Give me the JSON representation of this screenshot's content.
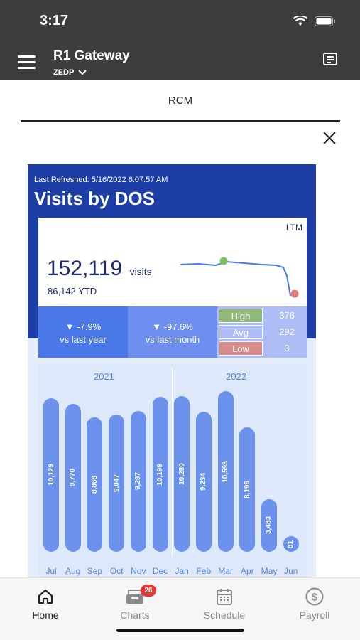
{
  "status": {
    "time": "3:17"
  },
  "app": {
    "title": "R1 Gateway",
    "org": "ZEDP"
  },
  "tabs": [
    {
      "label": "RCM"
    }
  ],
  "dashboard": {
    "refreshed": "Last Refreshed: 5/16/2022 6:07:57 AM",
    "title": "Visits by DOS",
    "period": "LTM",
    "visits": "152,119",
    "visits_unit": "visits",
    "ytd": "86,142 YTD",
    "vs_year_value": "▼ -7.9%",
    "vs_year_label": "vs last year",
    "vs_month_value": "▼ -97.6%",
    "vs_month_label": "vs last month",
    "high_label": "High",
    "high_value": "376",
    "high_color": "#8fba77",
    "avg_label": "Avg",
    "avg_value": "292",
    "avg_color": "#aebdf5",
    "low_label": "Low",
    "low_value": "3",
    "low_color": "#d88a8a"
  },
  "chart_data": {
    "type": "bar",
    "groups": [
      "2021",
      "2022"
    ],
    "categories": [
      "Jul",
      "Aug",
      "Sep",
      "Oct",
      "Nov",
      "Dec",
      "Jan",
      "Feb",
      "Mar",
      "Apr",
      "May",
      "Jun"
    ],
    "values": [
      10129,
      9770,
      8868,
      9047,
      9297,
      10199,
      10280,
      9234,
      10593,
      8196,
      3483,
      81
    ],
    "labels": [
      "10,129",
      "9,770",
      "8,868",
      "9,047",
      "9,297",
      "10,199",
      "10,280",
      "9,234",
      "10,593",
      "8,196",
      "3,483",
      "81"
    ],
    "bar_color": "#6a92ec"
  },
  "nav": [
    {
      "label": "Home",
      "icon": "home-icon",
      "active": true
    },
    {
      "label": "Charts",
      "icon": "inbox-icon",
      "badge": "26"
    },
    {
      "label": "Schedule",
      "icon": "calendar-icon"
    },
    {
      "label": "Payroll",
      "icon": "dollar-icon"
    }
  ]
}
